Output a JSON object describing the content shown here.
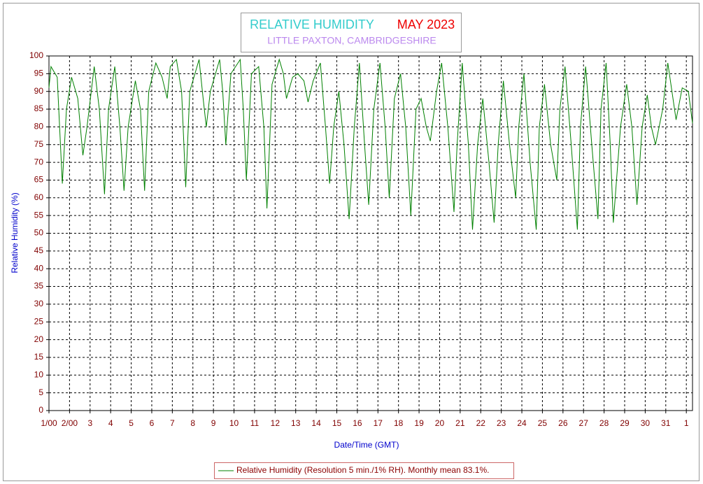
{
  "chart_data": {
    "type": "line",
    "title": "RELATIVE HUMIDITY",
    "title_date": "MAY 2023",
    "subtitle": "LITTLE PAXTON, CAMBRIDGESHIRE",
    "x_label": "Date/Time (GMT)",
    "y_label": "Relative Humidity (%)",
    "xlim": [
      0,
      31.3
    ],
    "ylim": [
      0,
      100
    ],
    "xticks": [
      {
        "value": 0,
        "label": "1/00"
      },
      {
        "value": 1,
        "label": "2/00"
      },
      {
        "value": 2,
        "label": "3"
      },
      {
        "value": 3,
        "label": "4"
      },
      {
        "value": 4,
        "label": "5"
      },
      {
        "value": 5,
        "label": "6"
      },
      {
        "value": 6,
        "label": "7"
      },
      {
        "value": 7,
        "label": "8"
      },
      {
        "value": 8,
        "label": "9"
      },
      {
        "value": 9,
        "label": "10"
      },
      {
        "value": 10,
        "label": "11"
      },
      {
        "value": 11,
        "label": "12"
      },
      {
        "value": 12,
        "label": "13"
      },
      {
        "value": 13,
        "label": "14"
      },
      {
        "value": 14,
        "label": "15"
      },
      {
        "value": 15,
        "label": "16"
      },
      {
        "value": 16,
        "label": "17"
      },
      {
        "value": 17,
        "label": "18"
      },
      {
        "value": 18,
        "label": "19"
      },
      {
        "value": 19,
        "label": "20"
      },
      {
        "value": 20,
        "label": "21"
      },
      {
        "value": 21,
        "label": "22"
      },
      {
        "value": 22,
        "label": "23"
      },
      {
        "value": 23,
        "label": "24"
      },
      {
        "value": 24,
        "label": "25"
      },
      {
        "value": 25,
        "label": "26"
      },
      {
        "value": 26,
        "label": "27"
      },
      {
        "value": 27,
        "label": "28"
      },
      {
        "value": 28,
        "label": "29"
      },
      {
        "value": 29,
        "label": "30"
      },
      {
        "value": 30,
        "label": "31"
      },
      {
        "value": 31,
        "label": "1"
      }
    ],
    "yticks": [
      0,
      5,
      10,
      15,
      20,
      25,
      30,
      35,
      40,
      45,
      50,
      55,
      60,
      65,
      70,
      75,
      80,
      85,
      90,
      95,
      100
    ],
    "grid": true,
    "x": [
      0,
      0.1,
      0.4,
      0.65,
      0.85,
      1.1,
      1.4,
      1.65,
      1.85,
      2.2,
      2.45,
      2.7,
      2.9,
      3.2,
      3.45,
      3.65,
      3.85,
      4.2,
      4.45,
      4.65,
      4.85,
      5.2,
      5.5,
      5.75,
      5.9,
      6.2,
      6.45,
      6.65,
      6.85,
      7.3,
      7.5,
      7.65,
      7.85,
      8.3,
      8.45,
      8.6,
      8.85,
      9.3,
      9.45,
      9.6,
      9.85,
      10.2,
      10.45,
      10.6,
      10.85,
      11.2,
      11.4,
      11.55,
      11.85,
      12.1,
      12.4,
      12.6,
      12.85,
      13.2,
      13.45,
      13.65,
      13.85,
      14.1,
      14.35,
      14.6,
      14.85,
      15.1,
      15.35,
      15.55,
      15.8,
      16.1,
      16.35,
      16.55,
      16.8,
      17.1,
      17.35,
      17.6,
      17.85,
      18.1,
      18.35,
      18.55,
      18.85,
      19.1,
      19.4,
      19.7,
      19.85,
      20.1,
      20.4,
      20.6,
      20.85,
      21.1,
      21.4,
      21.65,
      21.85,
      22.1,
      22.4,
      22.7,
      22.85,
      23.1,
      23.4,
      23.7,
      23.85,
      24.1,
      24.4,
      24.7,
      24.85,
      25.1,
      25.4,
      25.7,
      25.85,
      26.1,
      26.4,
      26.7,
      26.85,
      27.1,
      27.3,
      27.45,
      27.8,
      28.1,
      28.35,
      28.6,
      28.85,
      29.1,
      29.3,
      29.5,
      29.85,
      30.1,
      30.3,
      30.5,
      30.8,
      31.1,
      31.3
    ],
    "series": [
      {
        "name": "Relative Humidity (Resolution 5 min./1% RH). Monthly mean 83.1%.",
        "color": "#008000",
        "values": [
          91,
          97,
          94,
          64,
          85,
          94,
          88,
          72,
          80,
          97,
          85,
          61,
          85,
          97,
          80,
          62,
          80,
          93,
          85,
          62,
          90,
          98,
          94,
          88,
          97,
          99,
          90,
          63,
          90,
          99,
          88,
          80,
          90,
          99,
          90,
          75,
          95,
          99,
          85,
          65,
          95,
          97,
          80,
          57,
          92,
          99,
          95,
          88,
          94,
          95,
          93,
          87,
          93,
          98,
          80,
          64,
          80,
          90,
          75,
          54,
          80,
          98,
          75,
          58,
          85,
          98,
          80,
          60,
          88,
          95,
          80,
          55,
          85,
          88,
          80,
          76,
          90,
          98,
          80,
          56,
          75,
          98,
          75,
          51,
          75,
          88,
          70,
          53,
          75,
          93,
          75,
          60,
          80,
          95,
          70,
          51,
          80,
          92,
          75,
          65,
          85,
          97,
          75,
          51,
          80,
          97,
          75,
          54,
          85,
          98,
          75,
          53,
          80,
          92,
          80,
          58,
          80,
          89,
          80,
          75,
          85,
          98,
          90,
          82,
          91,
          90,
          81
        ]
      }
    ]
  }
}
